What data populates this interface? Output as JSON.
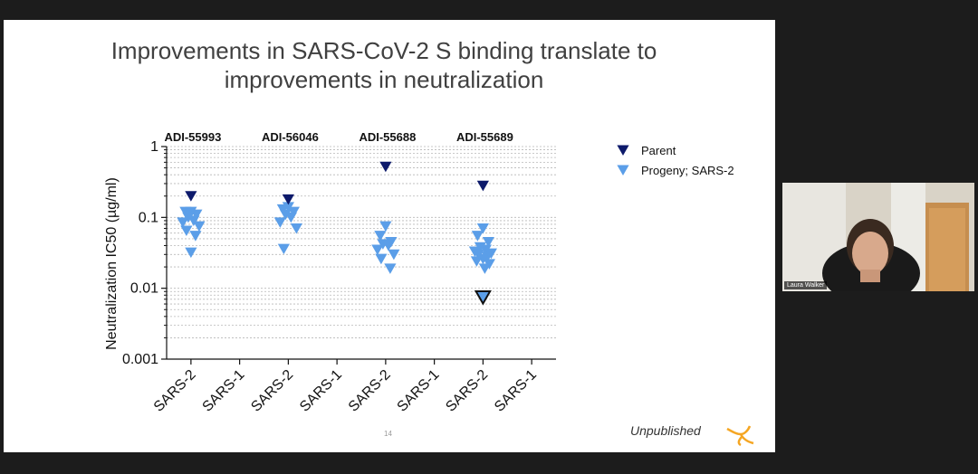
{
  "slide": {
    "title": "Improvements in SARS-CoV-2 S binding translate to\nimprovements in neutralization",
    "footer_note": "Unpublished",
    "page_number": "14",
    "brand_color": "#f5a623"
  },
  "participant": {
    "name": "Laura Walker"
  },
  "chart_data": {
    "type": "scatter",
    "ylabel": "Neutralization IC50 (µg/ml)",
    "yscale": "log",
    "ylim": [
      0.001,
      1
    ],
    "y_ticks": [
      "1",
      "0.1",
      "0.01",
      "0.001"
    ],
    "categories": [
      "SARS-2",
      "SARS-1",
      "SARS-2",
      "SARS-1",
      "SARS-2",
      "SARS-1",
      "SARS-2",
      "SARS-1"
    ],
    "groups": [
      "ADI-55993",
      "ADI-56046",
      "ADI-55688",
      "ADI-55689"
    ],
    "grid": "dotted horizontal",
    "legend_position": "top-right",
    "series": [
      {
        "name": "Parent",
        "color": "#0d1a6b",
        "points": [
          {
            "group": 0,
            "y": 0.2
          },
          {
            "group": 1,
            "y": 0.18
          },
          {
            "group": 2,
            "y": 0.52
          },
          {
            "group": 3,
            "y": 0.28
          }
        ]
      },
      {
        "name": "Progeny; SARS-2",
        "color": "#5b9ee8",
        "points": [
          {
            "group": 0,
            "y": 0.12
          },
          {
            "group": 0,
            "y": 0.12
          },
          {
            "group": 0,
            "y": 0.11
          },
          {
            "group": 0,
            "y": 0.1
          },
          {
            "group": 0,
            "y": 0.09
          },
          {
            "group": 0,
            "y": 0.085
          },
          {
            "group": 0,
            "y": 0.075
          },
          {
            "group": 0,
            "y": 0.065
          },
          {
            "group": 0,
            "y": 0.055
          },
          {
            "group": 0,
            "y": 0.032
          },
          {
            "group": 1,
            "y": 0.14
          },
          {
            "group": 1,
            "y": 0.13
          },
          {
            "group": 1,
            "y": 0.12
          },
          {
            "group": 1,
            "y": 0.11
          },
          {
            "group": 1,
            "y": 0.1
          },
          {
            "group": 1,
            "y": 0.085
          },
          {
            "group": 1,
            "y": 0.07
          },
          {
            "group": 1,
            "y": 0.036
          },
          {
            "group": 2,
            "y": 0.075
          },
          {
            "group": 2,
            "y": 0.055
          },
          {
            "group": 2,
            "y": 0.045
          },
          {
            "group": 2,
            "y": 0.042
          },
          {
            "group": 2,
            "y": 0.04
          },
          {
            "group": 2,
            "y": 0.035
          },
          {
            "group": 2,
            "y": 0.03
          },
          {
            "group": 2,
            "y": 0.026
          },
          {
            "group": 2,
            "y": 0.019
          },
          {
            "group": 3,
            "y": 0.07
          },
          {
            "group": 3,
            "y": 0.055
          },
          {
            "group": 3,
            "y": 0.045
          },
          {
            "group": 3,
            "y": 0.038
          },
          {
            "group": 3,
            "y": 0.035
          },
          {
            "group": 3,
            "y": 0.033
          },
          {
            "group": 3,
            "y": 0.031
          },
          {
            "group": 3,
            "y": 0.03
          },
          {
            "group": 3,
            "y": 0.028
          },
          {
            "group": 3,
            "y": 0.026
          },
          {
            "group": 3,
            "y": 0.024
          },
          {
            "group": 3,
            "y": 0.022
          },
          {
            "group": 3,
            "y": 0.019
          },
          {
            "group": 3,
            "y": 0.0075
          }
        ]
      }
    ]
  }
}
